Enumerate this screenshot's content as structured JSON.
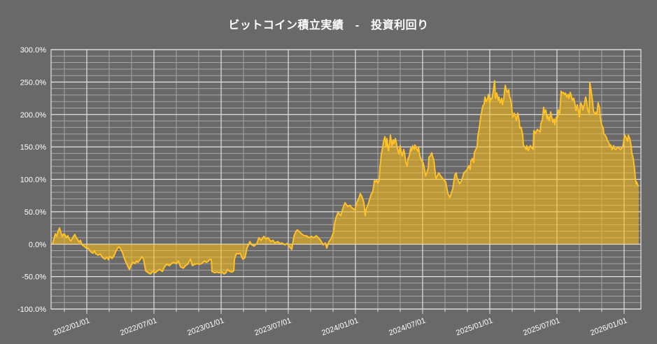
{
  "title": "ビットコイン積立実績　-　投資利回り",
  "colors": {
    "background": "#696969",
    "plot_line": "#FFC125",
    "area_fill": "rgba(255,193,20,0.55)",
    "grid_major": "#E2E2E2",
    "grid_minor": "#A6A6A6",
    "text": "#FFFFFF"
  },
  "chart_data": {
    "type": "area",
    "title": "ビットコイン積立実績 - 投資利回り",
    "series_name": "投資利回り",
    "xlabel": "",
    "ylabel": "",
    "x_unit": "decimal_year",
    "baseline": 0,
    "grid": true,
    "legend": "none",
    "xlim": [
      2021.734,
      2026.125
    ],
    "ylim": [
      -100,
      300
    ],
    "x_minor_step_months": 2,
    "y_minor_step": 10,
    "x_tick_positions": [
      2022.0,
      2022.5,
      2023.0,
      2023.5,
      2024.0,
      2024.5,
      2025.0,
      2025.5,
      2026.0
    ],
    "x_tick_labels": [
      "2022/01/01",
      "2022/07/01",
      "2023/01/01",
      "2023/07/01",
      "2024/01/01",
      "2024/07/01",
      "2025/01/01",
      "2025/07/01",
      "2026/01/01"
    ],
    "y_tick_positions": [
      -100,
      -50,
      0,
      50,
      100,
      150,
      200,
      250,
      300
    ],
    "y_tick_labels": [
      "-100.0%",
      "-50.0%",
      "0.0%",
      "50.0%",
      "100.0%",
      "150.0%",
      "200.0%",
      "250.0%",
      "300.0%"
    ],
    "points": [
      [
        2021.745,
        0
      ],
      [
        2021.755,
        8
      ],
      [
        2021.766,
        16
      ],
      [
        2021.776,
        12
      ],
      [
        2021.786,
        20
      ],
      [
        2021.797,
        25
      ],
      [
        2021.807,
        18
      ],
      [
        2021.818,
        12
      ],
      [
        2021.828,
        16
      ],
      [
        2021.839,
        14
      ],
      [
        2021.849,
        10
      ],
      [
        2021.859,
        13
      ],
      [
        2021.87,
        8
      ],
      [
        2021.88,
        5
      ],
      [
        2021.891,
        8
      ],
      [
        2021.901,
        12
      ],
      [
        2021.911,
        15
      ],
      [
        2021.922,
        10
      ],
      [
        2021.932,
        7
      ],
      [
        2021.943,
        3
      ],
      [
        2021.953,
        6
      ],
      [
        2021.964,
        -1
      ],
      [
        2021.979,
        -3
      ],
      [
        2021.995,
        -6
      ],
      [
        2022.0,
        -5
      ],
      [
        2022.016,
        -8
      ],
      [
        2022.031,
        -12
      ],
      [
        2022.047,
        -14
      ],
      [
        2022.057,
        -10
      ],
      [
        2022.068,
        -15
      ],
      [
        2022.083,
        -17
      ],
      [
        2022.099,
        -15
      ],
      [
        2022.12,
        -21
      ],
      [
        2022.135,
        -23
      ],
      [
        2022.151,
        -20
      ],
      [
        2022.161,
        -24
      ],
      [
        2022.172,
        -19
      ],
      [
        2022.188,
        -22
      ],
      [
        2022.203,
        -18
      ],
      [
        2022.214,
        -12
      ],
      [
        2022.229,
        -6
      ],
      [
        2022.24,
        -4
      ],
      [
        2022.25,
        -7
      ],
      [
        2022.266,
        -13
      ],
      [
        2022.276,
        -20
      ],
      [
        2022.292,
        -28
      ],
      [
        2022.307,
        -35
      ],
      [
        2022.318,
        -39
      ],
      [
        2022.328,
        -33
      ],
      [
        2022.344,
        -28
      ],
      [
        2022.359,
        -30
      ],
      [
        2022.37,
        -26
      ],
      [
        2022.38,
        -28
      ],
      [
        2022.396,
        -24
      ],
      [
        2022.411,
        -19
      ],
      [
        2022.422,
        -23
      ],
      [
        2022.438,
        -41
      ],
      [
        2022.458,
        -44
      ],
      [
        2022.474,
        -46
      ],
      [
        2022.49,
        -42
      ],
      [
        2022.51,
        -44
      ],
      [
        2022.526,
        -41
      ],
      [
        2022.542,
        -39
      ],
      [
        2022.563,
        -42
      ],
      [
        2022.578,
        -35
      ],
      [
        2022.594,
        -31
      ],
      [
        2022.615,
        -33
      ],
      [
        2022.63,
        -30
      ],
      [
        2022.646,
        -28
      ],
      [
        2022.667,
        -30
      ],
      [
        2022.682,
        -26
      ],
      [
        2022.698,
        -35
      ],
      [
        2022.719,
        -37
      ],
      [
        2022.734,
        -33
      ],
      [
        2022.75,
        -31
      ],
      [
        2022.771,
        -23
      ],
      [
        2022.786,
        -33
      ],
      [
        2022.802,
        -31
      ],
      [
        2022.823,
        -30
      ],
      [
        2022.839,
        -31
      ],
      [
        2022.854,
        -30
      ],
      [
        2022.875,
        -26
      ],
      [
        2022.891,
        -28
      ],
      [
        2022.906,
        -26
      ],
      [
        2022.917,
        -23
      ],
      [
        2022.927,
        -24
      ],
      [
        2022.932,
        -42
      ],
      [
        2022.953,
        -44
      ],
      [
        2022.969,
        -43
      ],
      [
        2022.984,
        -44
      ],
      [
        2023.005,
        -43
      ],
      [
        2023.021,
        -46
      ],
      [
        2023.036,
        -44
      ],
      [
        2023.047,
        -39
      ],
      [
        2023.063,
        -42
      ],
      [
        2023.083,
        -43
      ],
      [
        2023.094,
        -41
      ],
      [
        2023.099,
        -23
      ],
      [
        2023.109,
        -17
      ],
      [
        2023.115,
        -14
      ],
      [
        2023.125,
        -15
      ],
      [
        2023.141,
        -14
      ],
      [
        2023.161,
        -23
      ],
      [
        2023.177,
        -21
      ],
      [
        2023.193,
        -6
      ],
      [
        2023.214,
        4
      ],
      [
        2023.229,
        -1
      ],
      [
        2023.245,
        -3
      ],
      [
        2023.266,
        1
      ],
      [
        2023.281,
        10
      ],
      [
        2023.297,
        6
      ],
      [
        2023.318,
        12
      ],
      [
        2023.333,
        8
      ],
      [
        2023.349,
        10
      ],
      [
        2023.37,
        4
      ],
      [
        2023.385,
        6
      ],
      [
        2023.401,
        2
      ],
      [
        2023.422,
        4
      ],
      [
        2023.438,
        1
      ],
      [
        2023.453,
        2
      ],
      [
        2023.474,
        -1
      ],
      [
        2023.49,
        1
      ],
      [
        2023.505,
        -3
      ],
      [
        2023.526,
        -8
      ],
      [
        2023.542,
        12
      ],
      [
        2023.557,
        20
      ],
      [
        2023.568,
        22
      ],
      [
        2023.583,
        19
      ],
      [
        2023.604,
        15
      ],
      [
        2023.62,
        13
      ],
      [
        2023.635,
        13
      ],
      [
        2023.656,
        10
      ],
      [
        2023.672,
        12
      ],
      [
        2023.688,
        10
      ],
      [
        2023.708,
        13
      ],
      [
        2023.724,
        10
      ],
      [
        2023.74,
        6
      ],
      [
        2023.76,
        -1
      ],
      [
        2023.776,
        2
      ],
      [
        2023.786,
        -6
      ],
      [
        2023.802,
        4
      ],
      [
        2023.818,
        8
      ],
      [
        2023.839,
        20
      ],
      [
        2023.844,
        31
      ],
      [
        2023.854,
        40
      ],
      [
        2023.87,
        49
      ],
      [
        2023.891,
        44
      ],
      [
        2023.906,
        55
      ],
      [
        2023.922,
        64
      ],
      [
        2023.943,
        58
      ],
      [
        2023.958,
        60
      ],
      [
        2023.974,
        56
      ],
      [
        2023.995,
        53
      ],
      [
        2024.01,
        64
      ],
      [
        2024.026,
        71
      ],
      [
        2024.036,
        78
      ],
      [
        2024.047,
        74
      ],
      [
        2024.063,
        64
      ],
      [
        2024.073,
        44
      ],
      [
        2024.078,
        53
      ],
      [
        2024.099,
        64
      ],
      [
        2024.115,
        76
      ],
      [
        2024.13,
        82
      ],
      [
        2024.141,
        98
      ],
      [
        2024.151,
        96
      ],
      [
        2024.156,
        99
      ],
      [
        2024.167,
        94
      ],
      [
        2024.177,
        99
      ],
      [
        2024.182,
        118
      ],
      [
        2024.193,
        139
      ],
      [
        2024.203,
        150
      ],
      [
        2024.208,
        157
      ],
      [
        2024.219,
        166
      ],
      [
        2024.229,
        150
      ],
      [
        2024.234,
        163
      ],
      [
        2024.245,
        144
      ],
      [
        2024.255,
        157
      ],
      [
        2024.26,
        168
      ],
      [
        2024.271,
        152
      ],
      [
        2024.281,
        161
      ],
      [
        2024.286,
        155
      ],
      [
        2024.297,
        163
      ],
      [
        2024.307,
        153
      ],
      [
        2024.313,
        148
      ],
      [
        2024.323,
        139
      ],
      [
        2024.333,
        152
      ],
      [
        2024.339,
        144
      ],
      [
        2024.349,
        136
      ],
      [
        2024.359,
        146
      ],
      [
        2024.365,
        141
      ],
      [
        2024.375,
        126
      ],
      [
        2024.385,
        120
      ],
      [
        2024.391,
        132
      ],
      [
        2024.401,
        136
      ],
      [
        2024.411,
        148
      ],
      [
        2024.417,
        144
      ],
      [
        2024.427,
        152
      ],
      [
        2024.438,
        146
      ],
      [
        2024.443,
        153
      ],
      [
        2024.453,
        148
      ],
      [
        2024.464,
        143
      ],
      [
        2024.469,
        150
      ],
      [
        2024.479,
        136
      ],
      [
        2024.49,
        130
      ],
      [
        2024.495,
        128
      ],
      [
        2024.505,
        125
      ],
      [
        2024.516,
        114
      ],
      [
        2024.521,
        105
      ],
      [
        2024.531,
        110
      ],
      [
        2024.542,
        118
      ],
      [
        2024.547,
        134
      ],
      [
        2024.557,
        136
      ],
      [
        2024.568,
        141
      ],
      [
        2024.573,
        136
      ],
      [
        2024.583,
        130
      ],
      [
        2024.599,
        101
      ],
      [
        2024.62,
        110
      ],
      [
        2024.635,
        105
      ],
      [
        2024.651,
        101
      ],
      [
        2024.672,
        96
      ],
      [
        2024.688,
        78
      ],
      [
        2024.703,
        72
      ],
      [
        2024.724,
        85
      ],
      [
        2024.74,
        107
      ],
      [
        2024.75,
        110
      ],
      [
        2024.755,
        103
      ],
      [
        2024.776,
        93
      ],
      [
        2024.792,
        99
      ],
      [
        2024.807,
        110
      ],
      [
        2024.828,
        114
      ],
      [
        2024.844,
        121
      ],
      [
        2024.854,
        115
      ],
      [
        2024.859,
        128
      ],
      [
        2024.87,
        132
      ],
      [
        2024.88,
        126
      ],
      [
        2024.885,
        141
      ],
      [
        2024.896,
        146
      ],
      [
        2024.906,
        150
      ],
      [
        2024.911,
        166
      ],
      [
        2024.922,
        179
      ],
      [
        2024.932,
        196
      ],
      [
        2024.938,
        202
      ],
      [
        2024.948,
        213
      ],
      [
        2024.958,
        216
      ],
      [
        2024.964,
        227
      ],
      [
        2024.974,
        220
      ],
      [
        2024.984,
        224
      ],
      [
        2024.99,
        231
      ],
      [
        2025.0,
        218
      ],
      [
        2025.01,
        225
      ],
      [
        2025.016,
        224
      ],
      [
        2025.026,
        236
      ],
      [
        2025.036,
        252
      ],
      [
        2025.042,
        225
      ],
      [
        2025.052,
        233
      ],
      [
        2025.063,
        222
      ],
      [
        2025.068,
        227
      ],
      [
        2025.078,
        218
      ],
      [
        2025.089,
        225
      ],
      [
        2025.094,
        215
      ],
      [
        2025.104,
        224
      ],
      [
        2025.115,
        245
      ],
      [
        2025.12,
        240
      ],
      [
        2025.13,
        234
      ],
      [
        2025.141,
        238
      ],
      [
        2025.146,
        229
      ],
      [
        2025.156,
        222
      ],
      [
        2025.167,
        204
      ],
      [
        2025.172,
        196
      ],
      [
        2025.182,
        202
      ],
      [
        2025.193,
        195
      ],
      [
        2025.198,
        191
      ],
      [
        2025.208,
        202
      ],
      [
        2025.219,
        190
      ],
      [
        2025.224,
        179
      ],
      [
        2025.234,
        180
      ],
      [
        2025.245,
        168
      ],
      [
        2025.25,
        153
      ],
      [
        2025.26,
        150
      ],
      [
        2025.271,
        146
      ],
      [
        2025.276,
        152
      ],
      [
        2025.286,
        144
      ],
      [
        2025.302,
        152
      ],
      [
        2025.323,
        146
      ],
      [
        2025.328,
        175
      ],
      [
        2025.339,
        171
      ],
      [
        2025.354,
        177
      ],
      [
        2025.375,
        173
      ],
      [
        2025.38,
        186
      ],
      [
        2025.391,
        191
      ],
      [
        2025.401,
        211
      ],
      [
        2025.406,
        202
      ],
      [
        2025.417,
        207
      ],
      [
        2025.427,
        193
      ],
      [
        2025.432,
        198
      ],
      [
        2025.443,
        190
      ],
      [
        2025.453,
        204
      ],
      [
        2025.458,
        200
      ],
      [
        2025.469,
        188
      ],
      [
        2025.479,
        193
      ],
      [
        2025.484,
        184
      ],
      [
        2025.495,
        196
      ],
      [
        2025.505,
        195
      ],
      [
        2025.51,
        207
      ],
      [
        2025.521,
        202
      ],
      [
        2025.531,
        236
      ],
      [
        2025.536,
        233
      ],
      [
        2025.547,
        234
      ],
      [
        2025.557,
        231
      ],
      [
        2025.563,
        233
      ],
      [
        2025.573,
        227
      ],
      [
        2025.583,
        231
      ],
      [
        2025.589,
        225
      ],
      [
        2025.599,
        234
      ],
      [
        2025.609,
        227
      ],
      [
        2025.615,
        222
      ],
      [
        2025.625,
        225
      ],
      [
        2025.635,
        215
      ],
      [
        2025.641,
        206
      ],
      [
        2025.651,
        215
      ],
      [
        2025.661,
        204
      ],
      [
        2025.667,
        196
      ],
      [
        2025.677,
        218
      ],
      [
        2025.688,
        213
      ],
      [
        2025.693,
        207
      ],
      [
        2025.703,
        215
      ],
      [
        2025.714,
        227
      ],
      [
        2025.719,
        222
      ],
      [
        2025.729,
        207
      ],
      [
        2025.74,
        202
      ],
      [
        2025.745,
        249
      ],
      [
        2025.755,
        236
      ],
      [
        2025.766,
        218
      ],
      [
        2025.771,
        207
      ],
      [
        2025.781,
        200
      ],
      [
        2025.792,
        204
      ],
      [
        2025.797,
        200
      ],
      [
        2025.807,
        218
      ],
      [
        2025.818,
        209
      ],
      [
        2025.823,
        195
      ],
      [
        2025.833,
        184
      ],
      [
        2025.844,
        179
      ],
      [
        2025.849,
        170
      ],
      [
        2025.859,
        168
      ],
      [
        2025.87,
        164
      ],
      [
        2025.875,
        160
      ],
      [
        2025.885,
        157
      ],
      [
        2025.896,
        150
      ],
      [
        2025.901,
        153
      ],
      [
        2025.911,
        146
      ],
      [
        2025.922,
        152
      ],
      [
        2025.927,
        148
      ],
      [
        2025.938,
        146
      ],
      [
        2025.953,
        150
      ],
      [
        2025.974,
        146
      ],
      [
        2025.99,
        150
      ],
      [
        2026.0,
        163
      ],
      [
        2026.005,
        168
      ],
      [
        2026.016,
        164
      ],
      [
        2026.026,
        159
      ],
      [
        2026.031,
        168
      ],
      [
        2026.042,
        163
      ],
      [
        2026.052,
        152
      ],
      [
        2026.057,
        141
      ],
      [
        2026.068,
        132
      ],
      [
        2026.078,
        115
      ],
      [
        2026.083,
        103
      ],
      [
        2026.089,
        93
      ],
      [
        2026.094,
        96
      ],
      [
        2026.104,
        90
      ],
      [
        2026.109,
        90
      ]
    ]
  }
}
